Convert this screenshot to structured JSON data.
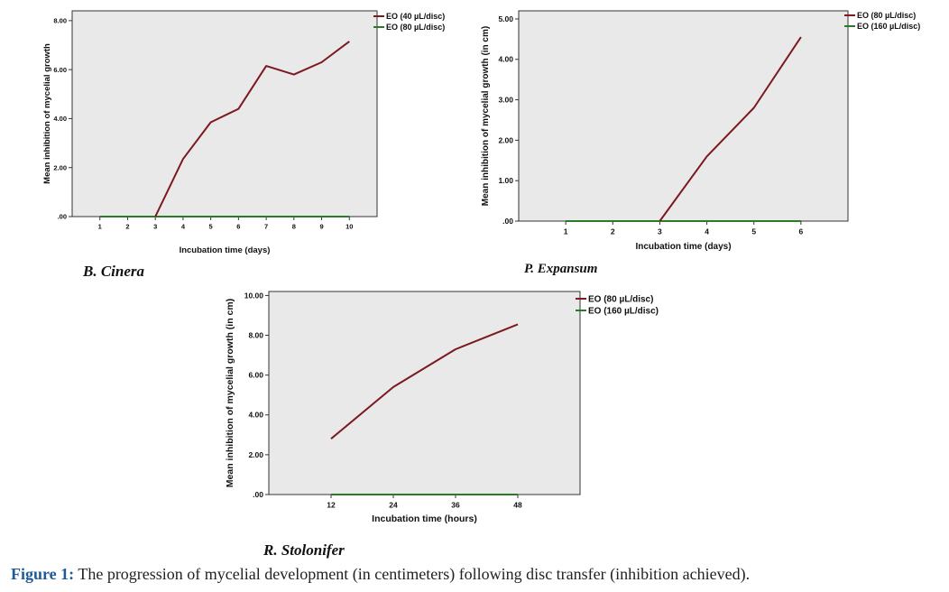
{
  "colors": {
    "series1": "#7b1820",
    "series2": "#2a7a27",
    "plot_background": "#e9e9e9",
    "caption_lead": "#1f5a96"
  },
  "chart_data": [
    {
      "id": "b-cinera",
      "type": "line",
      "caption": "B. Cinera",
      "xlabel": "Incubation time (days)",
      "ylabel": "Mean inhibition of mycelial growth",
      "x_tick_labels": [
        "1",
        "2",
        "3",
        "4",
        "5",
        "6",
        "7",
        "8",
        "9",
        "10"
      ],
      "y_ticks": [
        0,
        2,
        4,
        6,
        8
      ],
      "y_tick_labels": [
        ".00",
        "2.00",
        "4.00",
        "6.00",
        "8.00"
      ],
      "xlim": [
        0,
        11
      ],
      "ylim": [
        0,
        8.4
      ],
      "grid": false,
      "legend_position": "right",
      "series": [
        {
          "name": "EO (40 µL/disc)",
          "color": "#7b1820",
          "x": [
            3,
            4,
            5,
            6,
            7,
            8,
            9,
            10
          ],
          "values": [
            0,
            2.35,
            3.85,
            4.4,
            6.15,
            5.8,
            6.3,
            7.15
          ]
        },
        {
          "name": "EO (80 µL/disc)",
          "color": "#2a7a27",
          "x": [
            1,
            2,
            3,
            4,
            5,
            6,
            7,
            8,
            9,
            10
          ],
          "values": [
            0,
            0,
            0,
            0,
            0,
            0,
            0,
            0,
            0,
            0
          ]
        }
      ]
    },
    {
      "id": "p-expansum",
      "type": "line",
      "caption": "P. Expansum",
      "xlabel": "Incubation time (days)",
      "ylabel": "Mean inhibition of mycelial growth (in cm)",
      "x_tick_labels": [
        "1",
        "2",
        "3",
        "4",
        "5",
        "6"
      ],
      "y_ticks": [
        0,
        1,
        2,
        3,
        4,
        5
      ],
      "y_tick_labels": [
        ".00",
        "1.00",
        "2.00",
        "3.00",
        "4.00",
        "5.00"
      ],
      "xlim": [
        0,
        7
      ],
      "ylim": [
        0,
        5.2
      ],
      "grid": false,
      "legend_position": "right",
      "series": [
        {
          "name": "EO (80 µL/disc)",
          "color": "#7b1820",
          "x": [
            3,
            4,
            5,
            6
          ],
          "values": [
            0,
            1.6,
            2.8,
            4.55
          ]
        },
        {
          "name": "EO (160 µL/disc)",
          "color": "#2a7a27",
          "x": [
            1,
            2,
            3,
            4,
            5,
            6
          ],
          "values": [
            0,
            0,
            0,
            0,
            0,
            0
          ]
        }
      ]
    },
    {
      "id": "r-stolonifer",
      "type": "line",
      "caption": "R. Stolonifer",
      "xlabel": "Incubation time (hours)",
      "ylabel": "Mean inhibition of mycelial growth (in cm)",
      "x_tick_labels": [
        "12",
        "24",
        "36",
        "48"
      ],
      "y_ticks": [
        0,
        2,
        4,
        6,
        8,
        10
      ],
      "y_tick_labels": [
        ".00",
        "2.00",
        "4.00",
        "6.00",
        "8.00",
        "10.00"
      ],
      "xlim": [
        0,
        5
      ],
      "ylim": [
        0,
        10.2
      ],
      "grid": false,
      "legend_position": "right",
      "series": [
        {
          "name": "EO (80 µL/disc)",
          "color": "#7b1820",
          "x": [
            1,
            2,
            3,
            4
          ],
          "values": [
            2.8,
            5.4,
            7.3,
            8.55
          ]
        },
        {
          "name": "EO (160 µL/disc)",
          "color": "#2a7a27",
          "x": [
            1,
            2,
            3,
            4
          ],
          "values": [
            0,
            0,
            0,
            0
          ]
        }
      ]
    }
  ],
  "figure_caption": {
    "lead": "Figure 1:",
    "text": " The progression of mycelial development (in centimeters) following disc transfer (inhibition achieved)."
  }
}
